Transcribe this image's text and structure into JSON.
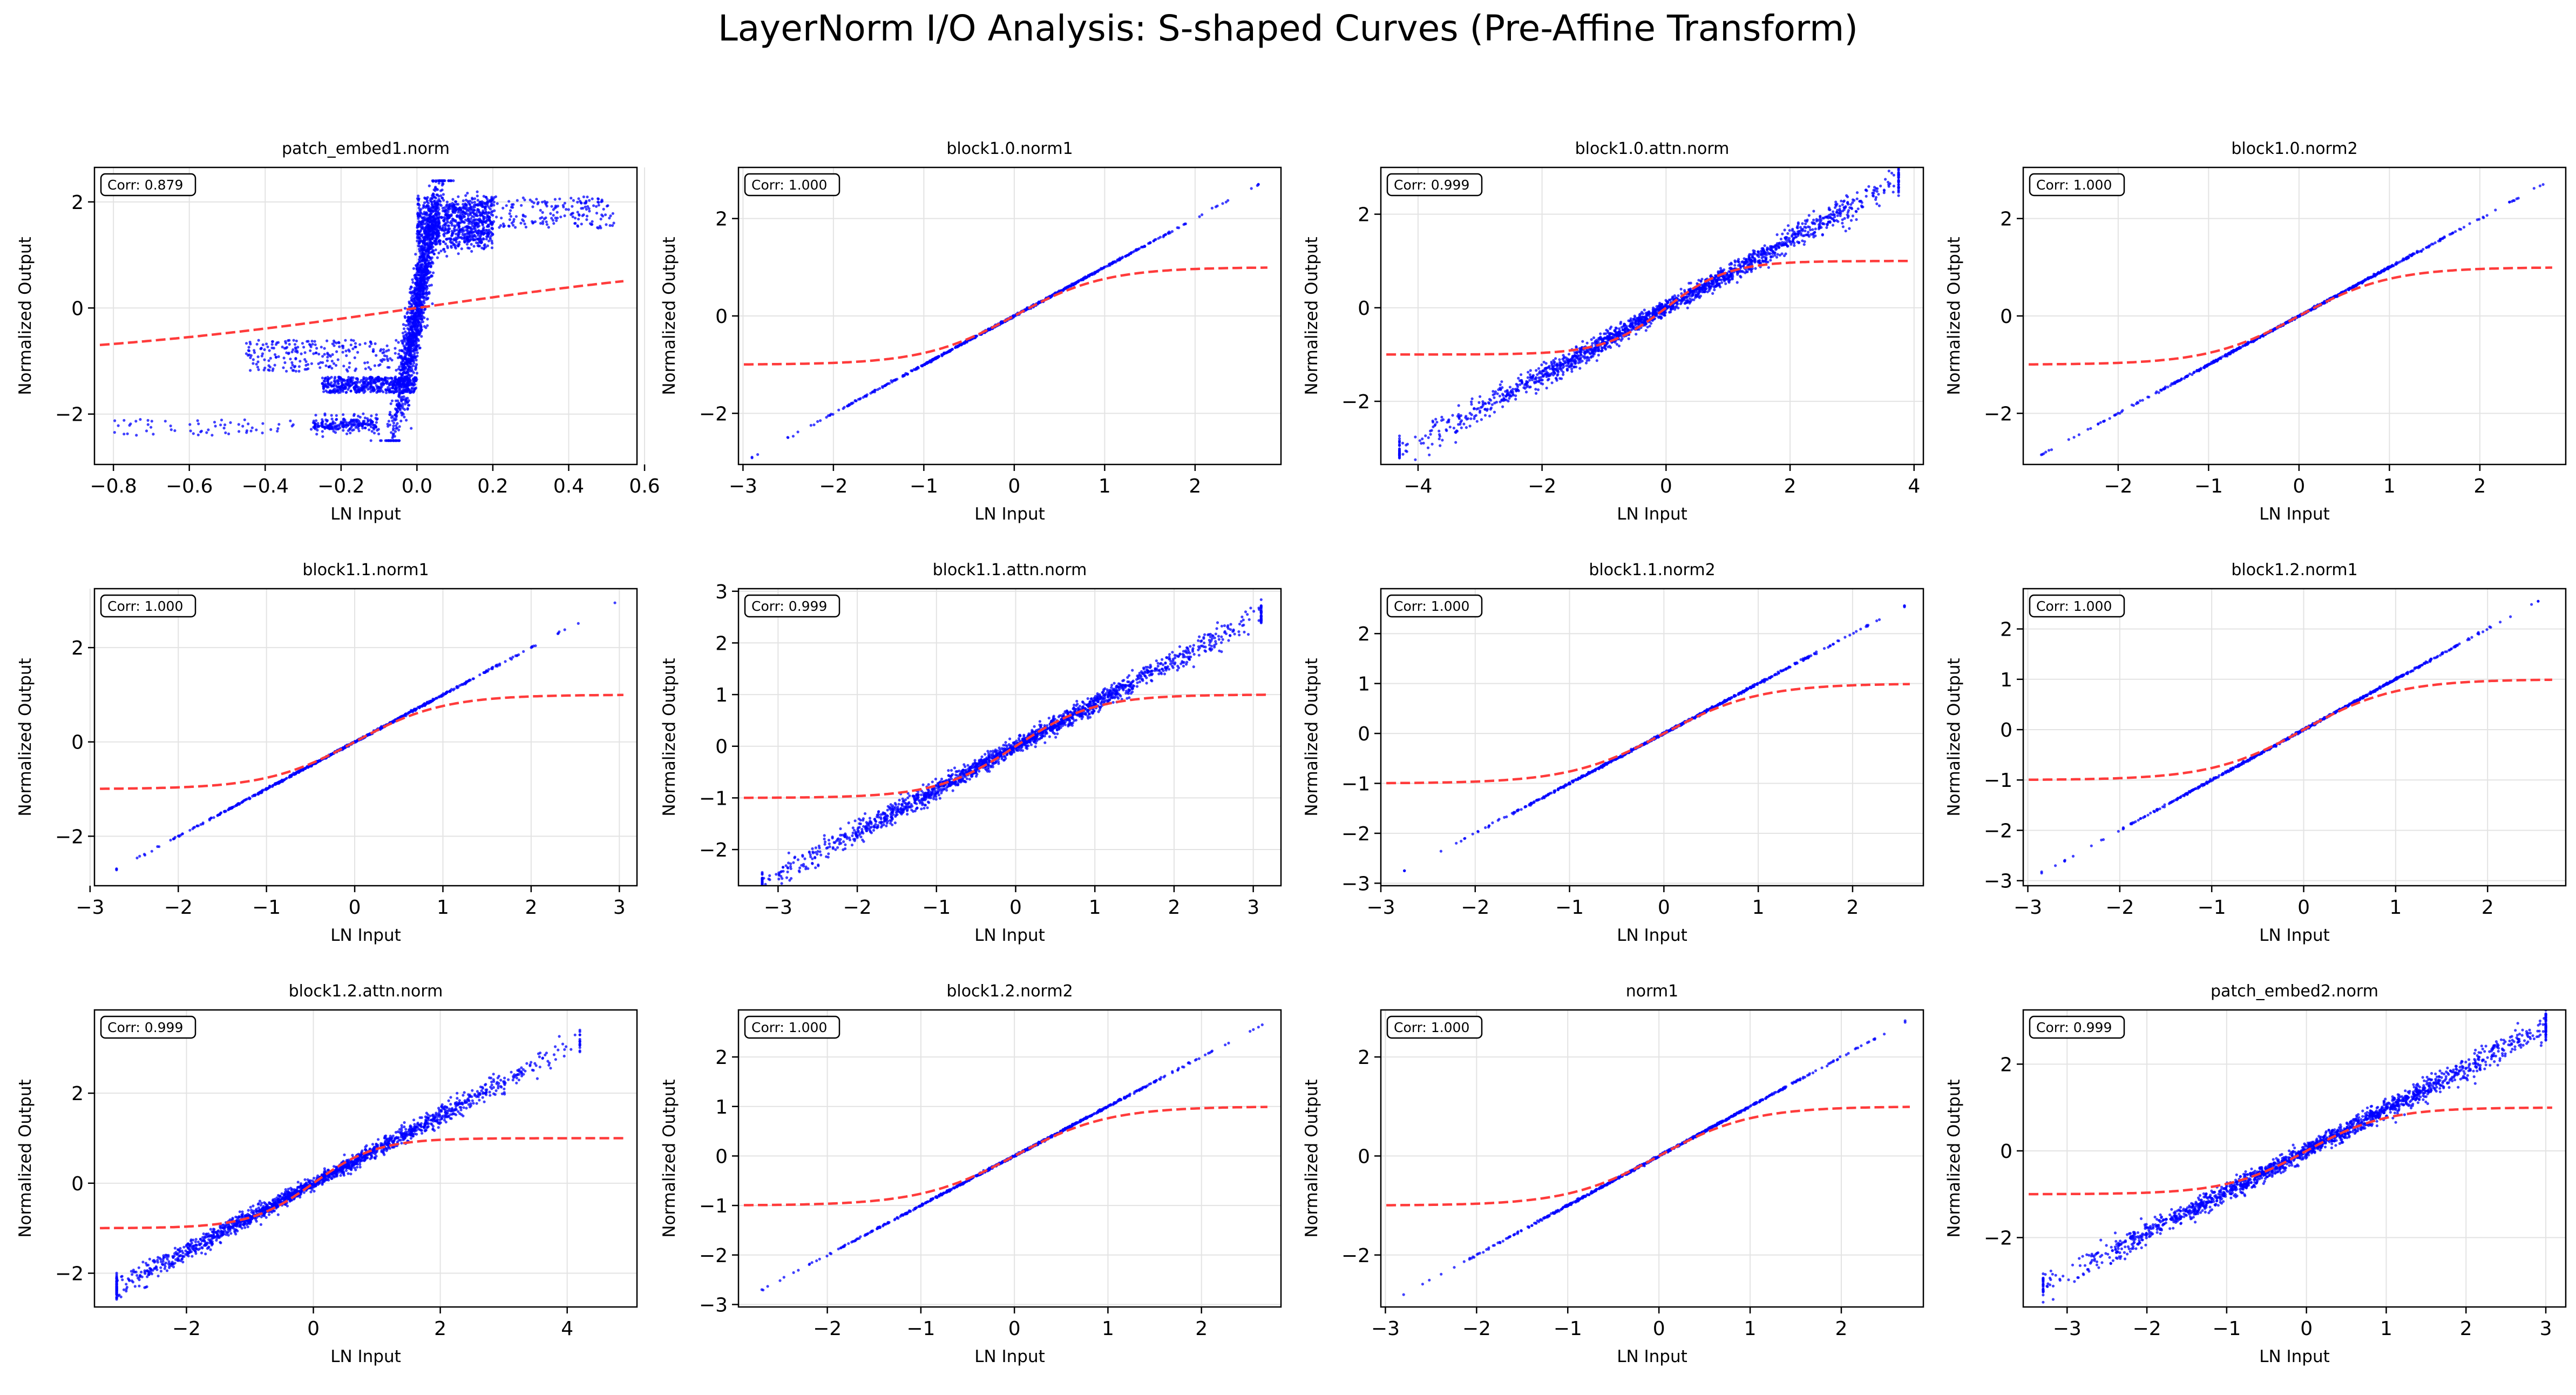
{
  "title": "LayerNorm I/O Analysis: S-shaped Curves (Pre-Affine Transform)",
  "colors": {
    "scatter": "#0000ff",
    "curve": "#ff3b3b",
    "grid": "#e3e3e3",
    "frame": "#000000"
  },
  "chart_data": [
    {
      "type": "scatter",
      "title": "patch_embed1.norm",
      "xlabel": "LN Input",
      "ylabel": "Normalized Output",
      "corr_label": "Corr: 0.879",
      "xlim": [
        -0.85,
        0.58
      ],
      "ylim": [
        -2.95,
        2.65
      ],
      "xticks": [
        -0.8,
        -0.6,
        -0.4,
        -0.2,
        0.0,
        0.2,
        0.4,
        0.6
      ],
      "xtick_labels": [
        "−0.8",
        "−0.6",
        "−0.4",
        "−0.2",
        "0.0",
        "0.2",
        "0.4",
        "0.6"
      ],
      "yticks": [
        -2,
        0,
        2
      ],
      "ytick_labels": [
        "−2",
        "0",
        "2"
      ],
      "scatter_pattern": "patch1",
      "curve_scale": 1.2,
      "grid": true
    },
    {
      "type": "scatter",
      "title": "block1.0.norm1",
      "xlabel": "LN Input",
      "ylabel": "Normalized Output",
      "corr_label": "Corr: 1.000",
      "xlim": [
        -3.05,
        2.95
      ],
      "ylim": [
        -3.05,
        3.05
      ],
      "xticks": [
        -3,
        -2,
        -1,
        0,
        1,
        2
      ],
      "xtick_labels": [
        "−3",
        "−2",
        "−1",
        "0",
        "1",
        "2"
      ],
      "yticks": [
        -2,
        0,
        2
      ],
      "ytick_labels": [
        "−2",
        "0",
        "2"
      ],
      "scatter_pattern": "line",
      "noise": 0.01,
      "x_range": [
        -2.9,
        2.7
      ],
      "grid": true
    },
    {
      "type": "scatter",
      "title": "block1.0.attn.norm",
      "xlabel": "LN Input",
      "ylabel": "Normalized Output",
      "corr_label": "Corr: 0.999",
      "xlim": [
        -4.6,
        4.15
      ],
      "ylim": [
        -3.35,
        3.0
      ],
      "xticks": [
        -4,
        -2,
        0,
        2,
        4
      ],
      "xtick_labels": [
        "−4",
        "−2",
        "0",
        "2",
        "4"
      ],
      "yticks": [
        -2,
        0,
        2
      ],
      "ytick_labels": [
        "−2",
        "0",
        "2"
      ],
      "scatter_pattern": "band",
      "slope": 0.72,
      "noise": 0.08,
      "x_range": [
        -4.3,
        3.75
      ],
      "grid": true
    },
    {
      "type": "scatter",
      "title": "block1.0.norm2",
      "xlabel": "LN Input",
      "ylabel": "Normalized Output",
      "corr_label": "Corr: 1.000",
      "xlim": [
        -3.05,
        2.95
      ],
      "ylim": [
        -3.05,
        3.05
      ],
      "xticks": [
        -2,
        -1,
        0,
        1,
        2
      ],
      "xtick_labels": [
        "−2",
        "−1",
        "0",
        "1",
        "2"
      ],
      "yticks": [
        -2,
        0,
        2
      ],
      "ytick_labels": [
        "−2",
        "0",
        "2"
      ],
      "scatter_pattern": "line",
      "noise": 0.01,
      "x_range": [
        -2.85,
        2.7
      ],
      "grid": true
    },
    {
      "type": "scatter",
      "title": "block1.1.norm1",
      "xlabel": "LN Input",
      "ylabel": "Normalized Output",
      "corr_label": "Corr: 1.000",
      "xlim": [
        -2.95,
        3.2
      ],
      "ylim": [
        -3.05,
        3.25
      ],
      "xticks": [
        -3,
        -2,
        -1,
        0,
        1,
        2,
        3
      ],
      "xtick_labels": [
        "−3",
        "−2",
        "−1",
        "0",
        "1",
        "2",
        "3"
      ],
      "yticks": [
        -2,
        0,
        2
      ],
      "ytick_labels": [
        "−2",
        "0",
        "2"
      ],
      "scatter_pattern": "line",
      "noise": 0.01,
      "x_range": [
        -2.7,
        2.95
      ],
      "grid": true
    },
    {
      "type": "scatter",
      "title": "block1.1.attn.norm",
      "xlabel": "LN Input",
      "ylabel": "Normalized Output",
      "corr_label": "Corr: 0.999",
      "xlim": [
        -3.5,
        3.35
      ],
      "ylim": [
        -2.7,
        3.05
      ],
      "xticks": [
        -3,
        -2,
        -1,
        0,
        1,
        2,
        3
      ],
      "xtick_labels": [
        "−3",
        "−2",
        "−1",
        "0",
        "1",
        "2",
        "3"
      ],
      "yticks": [
        -2,
        -1,
        0,
        1,
        2,
        3
      ],
      "ytick_labels": [
        "−2",
        "−1",
        "0",
        "1",
        "2",
        "3"
      ],
      "scatter_pattern": "band",
      "slope": 0.83,
      "noise": 0.07,
      "x_range": [
        -3.2,
        3.1
      ],
      "grid": true
    },
    {
      "type": "scatter",
      "title": "block1.1.norm2",
      "xlabel": "LN Input",
      "ylabel": "Normalized Output",
      "corr_label": "Corr: 1.000",
      "xlim": [
        -3.0,
        2.75
      ],
      "ylim": [
        -3.05,
        2.9
      ],
      "xticks": [
        -3,
        -2,
        -1,
        0,
        1,
        2
      ],
      "xtick_labels": [
        "−3",
        "−2",
        "−1",
        "0",
        "1",
        "2"
      ],
      "yticks": [
        -3,
        -2,
        -1,
        0,
        1,
        2
      ],
      "ytick_labels": [
        "−3",
        "−2",
        "−1",
        "0",
        "1",
        "2"
      ],
      "scatter_pattern": "line",
      "noise": 0.01,
      "x_range": [
        -2.75,
        2.55
      ],
      "grid": true
    },
    {
      "type": "scatter",
      "title": "block1.2.norm1",
      "xlabel": "LN Input",
      "ylabel": "Normalized Output",
      "corr_label": "Corr: 1.000",
      "xlim": [
        -3.05,
        2.85
      ],
      "ylim": [
        -3.1,
        2.8
      ],
      "xticks": [
        -3,
        -2,
        -1,
        0,
        1,
        2
      ],
      "xtick_labels": [
        "−3",
        "−2",
        "−1",
        "0",
        "1",
        "2"
      ],
      "yticks": [
        -3,
        -2,
        -1,
        0,
        1,
        2
      ],
      "ytick_labels": [
        "−3",
        "−2",
        "−1",
        "0",
        "1",
        "2"
      ],
      "scatter_pattern": "line",
      "noise": 0.01,
      "x_range": [
        -2.85,
        2.55
      ],
      "grid": true
    },
    {
      "type": "scatter",
      "title": "block1.2.attn.norm",
      "xlabel": "LN Input",
      "ylabel": "Normalized Output",
      "corr_label": "Corr: 0.999",
      "xlim": [
        -3.45,
        5.1
      ],
      "ylim": [
        -2.75,
        3.85
      ],
      "xticks": [
        -2,
        0,
        2,
        4
      ],
      "xtick_labels": [
        "−2",
        "0",
        "2",
        "4"
      ],
      "yticks": [
        -2,
        0,
        2
      ],
      "ytick_labels": [
        "−2",
        "0",
        "2"
      ],
      "scatter_pattern": "band",
      "slope": 0.75,
      "noise": 0.07,
      "x_range": [
        -3.1,
        4.2
      ],
      "grid": true
    },
    {
      "type": "scatter",
      "title": "block1.2.norm2",
      "xlabel": "LN Input",
      "ylabel": "Normalized Output",
      "corr_label": "Corr: 1.000",
      "xlim": [
        -2.95,
        2.85
      ],
      "ylim": [
        -3.05,
        2.95
      ],
      "xticks": [
        -2,
        -1,
        0,
        1,
        2
      ],
      "xtick_labels": [
        "−2",
        "−1",
        "0",
        "1",
        "2"
      ],
      "yticks": [
        -3,
        -2,
        -1,
        0,
        1,
        2
      ],
      "ytick_labels": [
        "−3",
        "−2",
        "−1",
        "0",
        "1",
        "2"
      ],
      "scatter_pattern": "line",
      "noise": 0.01,
      "x_range": [
        -2.7,
        2.65
      ],
      "grid": true
    },
    {
      "type": "scatter",
      "title": "norm1",
      "xlabel": "LN Input",
      "ylabel": "Normalized Output",
      "corr_label": "Corr: 1.000",
      "xlim": [
        -3.05,
        2.9
      ],
      "ylim": [
        -3.05,
        2.95
      ],
      "xticks": [
        -3,
        -2,
        -1,
        0,
        1,
        2
      ],
      "xtick_labels": [
        "−3",
        "−2",
        "−1",
        "0",
        "1",
        "2"
      ],
      "yticks": [
        -2,
        0,
        2
      ],
      "ytick_labels": [
        "−2",
        "0",
        "2"
      ],
      "scatter_pattern": "line",
      "noise": 0.01,
      "x_range": [
        -2.8,
        2.7
      ],
      "grid": true
    },
    {
      "type": "scatter",
      "title": "patch_embed2.norm",
      "xlabel": "LN Input",
      "ylabel": "Normalized Output",
      "corr_label": "Corr: 0.999",
      "xlim": [
        -3.55,
        3.25
      ],
      "ylim": [
        -3.6,
        3.25
      ],
      "xticks": [
        -3,
        -2,
        -1,
        0,
        1,
        2,
        3
      ],
      "xtick_labels": [
        "−3",
        "−2",
        "−1",
        "0",
        "1",
        "2",
        "3"
      ],
      "yticks": [
        -2,
        0,
        2
      ],
      "ytick_labels": [
        "−2",
        "0",
        "2"
      ],
      "scatter_pattern": "band",
      "slope": 0.95,
      "noise": 0.09,
      "x_range": [
        -3.3,
        3.0
      ],
      "grid": true
    }
  ]
}
